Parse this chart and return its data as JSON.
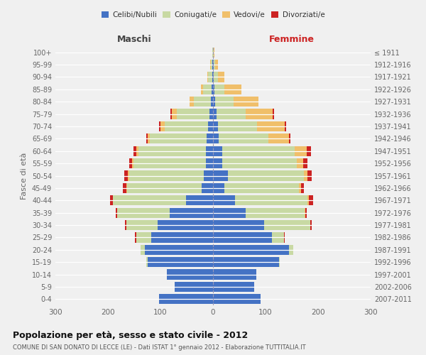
{
  "age_groups": [
    "100+",
    "95-99",
    "90-94",
    "85-89",
    "80-84",
    "75-79",
    "70-74",
    "65-69",
    "60-64",
    "55-59",
    "50-54",
    "45-49",
    "40-44",
    "35-39",
    "30-34",
    "25-29",
    "20-24",
    "15-19",
    "10-14",
    "5-9",
    "0-4"
  ],
  "birth_years": [
    "≤ 1911",
    "1912-1916",
    "1917-1921",
    "1922-1926",
    "1927-1931",
    "1932-1936",
    "1937-1941",
    "1942-1946",
    "1947-1951",
    "1952-1956",
    "1957-1961",
    "1962-1966",
    "1967-1971",
    "1972-1976",
    "1977-1981",
    "1982-1986",
    "1987-1991",
    "1992-1996",
    "1997-2001",
    "2002-2006",
    "2007-2011"
  ],
  "male_celibi": [
    0,
    1,
    2,
    3,
    4,
    7,
    10,
    12,
    14,
    14,
    18,
    22,
    52,
    82,
    105,
    118,
    130,
    125,
    88,
    73,
    103
  ],
  "male_coniugati": [
    1,
    3,
    7,
    16,
    33,
    62,
    82,
    108,
    128,
    138,
    142,
    142,
    138,
    100,
    60,
    28,
    8,
    2,
    0,
    0,
    0
  ],
  "male_vedovi": [
    0,
    1,
    2,
    4,
    8,
    10,
    8,
    4,
    4,
    2,
    2,
    1,
    1,
    0,
    0,
    0,
    0,
    0,
    0,
    0,
    0
  ],
  "male_divorziati": [
    0,
    0,
    0,
    0,
    0,
    2,
    3,
    3,
    6,
    6,
    7,
    7,
    5,
    3,
    2,
    2,
    0,
    0,
    0,
    0,
    0
  ],
  "female_celibi": [
    0,
    1,
    2,
    3,
    4,
    7,
    9,
    11,
    18,
    18,
    28,
    22,
    42,
    62,
    97,
    112,
    145,
    125,
    82,
    78,
    90
  ],
  "female_coniugati": [
    1,
    3,
    8,
    18,
    35,
    55,
    75,
    95,
    138,
    142,
    145,
    142,
    138,
    112,
    88,
    23,
    8,
    2,
    0,
    0,
    0
  ],
  "female_vedovi": [
    2,
    5,
    12,
    33,
    48,
    52,
    52,
    38,
    22,
    12,
    7,
    4,
    2,
    1,
    0,
    0,
    0,
    0,
    0,
    0,
    0
  ],
  "female_divorziati": [
    0,
    0,
    0,
    0,
    0,
    2,
    3,
    3,
    8,
    8,
    8,
    5,
    8,
    3,
    3,
    2,
    0,
    0,
    0,
    0,
    0
  ],
  "color_celibi": "#4472c4",
  "color_coniugati": "#c8d9a3",
  "color_vedovi": "#f0bf6a",
  "color_divorziati": "#cc2222",
  "title1": "Popolazione per età, sesso e stato civile - 2012",
  "title2": "COMUNE DI SAN DONATO DI LECCE (LE) - Dati ISTAT 1° gennaio 2012 - Elaborazione TUTTITALIA.IT",
  "xlabel_left": "Maschi",
  "xlabel_right": "Femmine",
  "ylabel_left": "Fasce di età",
  "xlim": 300,
  "bg_color": "#f0f0f0",
  "bar_height": 0.82
}
